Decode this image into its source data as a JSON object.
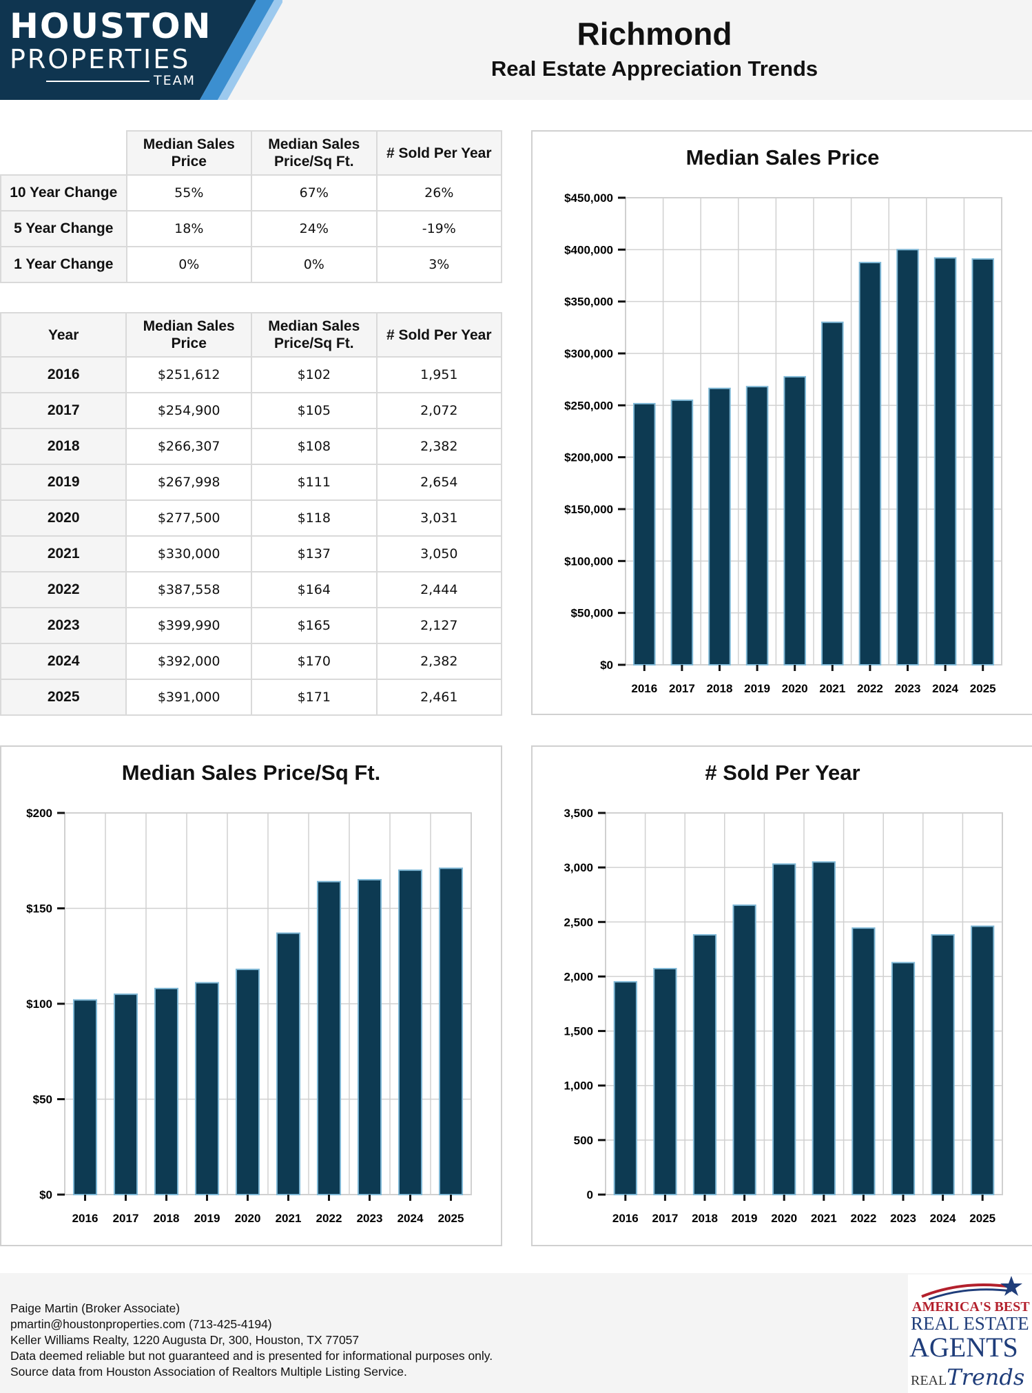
{
  "header": {
    "logo": {
      "line1": "HOUSTON",
      "line2": "PROPERTIES",
      "line3": "TEAM"
    },
    "title": "Richmond",
    "subtitle": "Real Estate Appreciation Trends"
  },
  "change_table": {
    "headers": [
      "Median Sales Price",
      "Median Sales Price/Sq Ft.",
      "# Sold Per Year"
    ],
    "rows": [
      {
        "label": "10 Year Change",
        "values": [
          "55%",
          "67%",
          "26%"
        ]
      },
      {
        "label": "5 Year Change",
        "values": [
          "18%",
          "24%",
          "-19%"
        ]
      },
      {
        "label": "1 Year Change",
        "values": [
          "0%",
          "0%",
          "3%"
        ]
      }
    ]
  },
  "year_table": {
    "headers": [
      "Year",
      "Median Sales Price",
      "Median Sales Price/Sq Ft.",
      "# Sold Per Year"
    ],
    "rows": [
      [
        "2016",
        "$251,612",
        "$102",
        "1,951"
      ],
      [
        "2017",
        "$254,900",
        "$105",
        "2,072"
      ],
      [
        "2018",
        "$266,307",
        "$108",
        "2,382"
      ],
      [
        "2019",
        "$267,998",
        "$111",
        "2,654"
      ],
      [
        "2020",
        "$277,500",
        "$118",
        "3,031"
      ],
      [
        "2021",
        "$330,000",
        "$137",
        "3,050"
      ],
      [
        "2022",
        "$387,558",
        "$164",
        "2,444"
      ],
      [
        "2023",
        "$399,990",
        "$165",
        "2,127"
      ],
      [
        "2024",
        "$392,000",
        "$170",
        "2,382"
      ],
      [
        "2025",
        "$391,000",
        "$171",
        "2,461"
      ]
    ]
  },
  "colors": {
    "bar_fill": "#0d3a52",
    "bar_edge": "#7fb8d6",
    "grid": "#d0d0d0",
    "logo_bg": "#0f3550",
    "logo_stripe": "#3c8fd0"
  },
  "chart_data": [
    {
      "type": "bar",
      "title": "Median Sales Price",
      "categories": [
        "2016",
        "2017",
        "2018",
        "2019",
        "2020",
        "2021",
        "2022",
        "2023",
        "2024",
        "2025"
      ],
      "values": [
        251612,
        254900,
        266307,
        267998,
        277500,
        330000,
        387558,
        399990,
        392000,
        391000
      ],
      "ylim": [
        0,
        450000
      ],
      "yticks": [
        "$0",
        "$50,000",
        "$100,000",
        "$150,000",
        "$200,000",
        "$250,000",
        "$300,000",
        "$350,000",
        "$400,000",
        "$450,000"
      ],
      "grid": true
    },
    {
      "type": "bar",
      "title": "Median Sales Price/Sq Ft.",
      "categories": [
        "2016",
        "2017",
        "2018",
        "2019",
        "2020",
        "2021",
        "2022",
        "2023",
        "2024",
        "2025"
      ],
      "values": [
        102,
        105,
        108,
        111,
        118,
        137,
        164,
        165,
        170,
        171
      ],
      "ylim": [
        0,
        200
      ],
      "yticks": [
        "$0",
        "$50",
        "$100",
        "$150",
        "$200"
      ],
      "grid": true
    },
    {
      "type": "bar",
      "title": "# Sold Per Year",
      "categories": [
        "2016",
        "2017",
        "2018",
        "2019",
        "2020",
        "2021",
        "2022",
        "2023",
        "2024",
        "2025"
      ],
      "values": [
        1951,
        2072,
        2382,
        2654,
        3031,
        3050,
        2444,
        2127,
        2382,
        2461
      ],
      "ylim": [
        0,
        3500
      ],
      "yticks": [
        "0",
        "500",
        "1,000",
        "1,500",
        "2,000",
        "2,500",
        "3,000",
        "3,500"
      ],
      "grid": true
    }
  ],
  "footer": {
    "lines": [
      "Paige Martin (Broker Associate)",
      "pmartin@houstonproperties.com (713-425-4194)",
      "Keller Williams Realty, 1220 Augusta Dr, 300, Houston, TX 77057",
      "Data deemed reliable but not guaranteed and is presented for informational purposes only.",
      "Source data from Houston Association of Realtors Multiple Listing Service."
    ],
    "badge": {
      "line1": "AMERICA'S BEST",
      "line2": "REAL ESTATE",
      "line3": "AGENTS",
      "line4": "REAL",
      "line5": "Trends"
    }
  }
}
